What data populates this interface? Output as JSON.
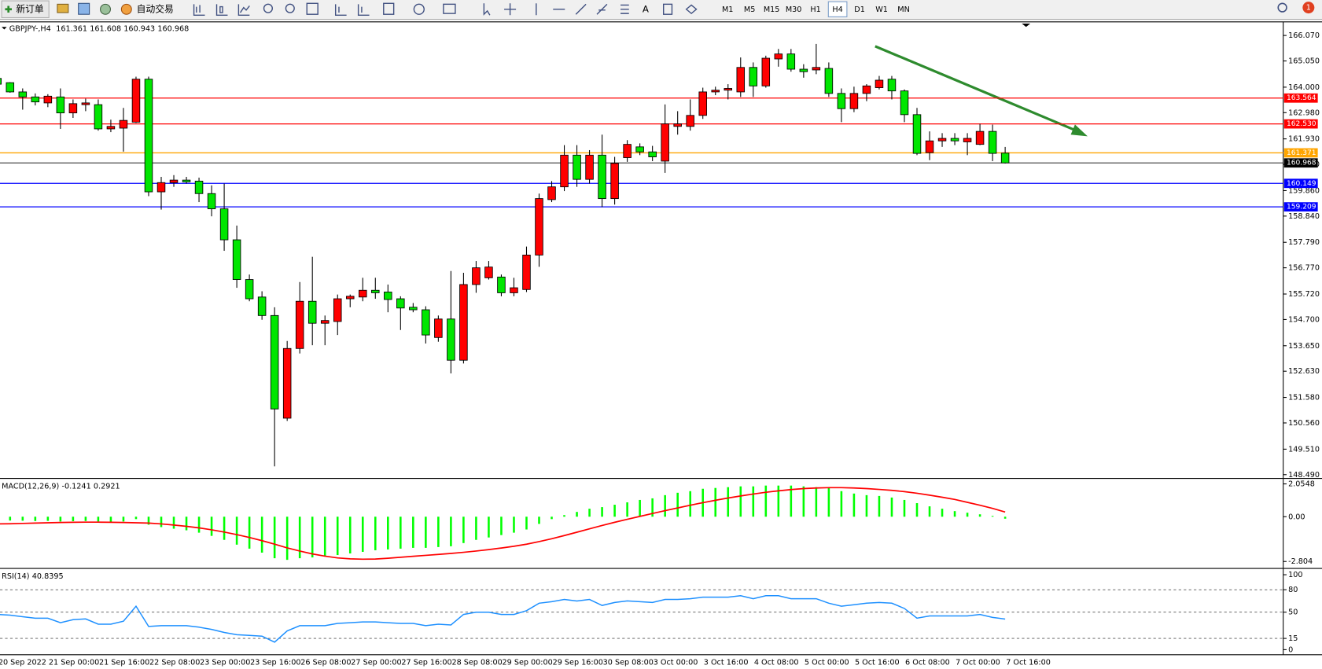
{
  "toolbar": {
    "new_order": "新订单",
    "auto_trading": "自动交易",
    "timeframes": [
      "M1",
      "M5",
      "M15",
      "M30",
      "H1",
      "H4",
      "D1",
      "W1",
      "MN"
    ],
    "active_timeframe": "H4",
    "notifications": 1
  },
  "chart_data": [
    {
      "type": "candlestick",
      "symbol": "GBPJPY-,H4",
      "categories": [
        "20 Sep 2022",
        null,
        null,
        null,
        "21 Sep 00:00",
        null,
        null,
        null,
        "21 Sep 16:00",
        null,
        null,
        null,
        "22 Sep 08:00",
        null,
        null,
        null,
        "23 Sep 00:00",
        null,
        null,
        null,
        "23 Sep 16:00",
        null,
        null,
        null,
        "26 Sep 08:00",
        null,
        null,
        null,
        "27 Sep 00:00",
        null,
        null,
        null,
        "27 Sep 16:00",
        null,
        null,
        null,
        "28 Sep 08:00",
        null,
        null,
        null,
        "29 Sep 00:00",
        null,
        null,
        null,
        "29 Sep 16:00",
        null,
        null,
        null,
        "30 Sep 08:00",
        null,
        null,
        null,
        "3 Oct 00:00",
        null,
        null,
        null,
        "3 Oct 16:00",
        null,
        null,
        null,
        "4 Oct 08:00",
        null,
        null,
        null,
        "5 Oct 00:00",
        null,
        null,
        null,
        "5 Oct 16:00",
        null,
        null,
        null,
        "6 Oct 08:00",
        null,
        null,
        null,
        "7 Oct 00:00",
        null,
        null,
        null,
        "7 Oct 16:00"
      ],
      "open": [
        164.35,
        164.18,
        163.81,
        163.61,
        163.37,
        163.61,
        162.97,
        163.3,
        163.3,
        162.33,
        162.36,
        162.6,
        164.32,
        159.81,
        160.18,
        160.28,
        160.24,
        159.74,
        159.13,
        157.89,
        156.3,
        155.6,
        154.86,
        150.75,
        153.54,
        155.43,
        154.55,
        154.62,
        155.53,
        155.6,
        155.87,
        155.8,
        155.53,
        155.19,
        155.09,
        153.98,
        154.72,
        153.07,
        156.1,
        156.37,
        156.4,
        155.77,
        155.9,
        157.28,
        159.5,
        160.01,
        161.28,
        160.31,
        161.28,
        159.54,
        161.18,
        161.61,
        161.41,
        161.04,
        162.43,
        162.43,
        162.87,
        163.81,
        163.88,
        163.81,
        164.79,
        164.05,
        165.13,
        165.33,
        164.72,
        164.69,
        164.75,
        163.75,
        163.14,
        163.75,
        163.98,
        164.32,
        163.85,
        162.9,
        161.38,
        161.85,
        161.95,
        161.81,
        161.71,
        162.23,
        161.361
      ],
      "high": [
        164.4,
        164.2,
        163.95,
        163.75,
        163.72,
        163.95,
        163.51,
        163.54,
        163.51,
        162.7,
        163.17,
        164.42,
        164.42,
        160.41,
        160.48,
        160.41,
        160.38,
        160.07,
        160.14,
        158.46,
        156.5,
        155.83,
        155.19,
        153.84,
        156.2,
        157.21,
        154.86,
        155.7,
        155.7,
        156.37,
        156.37,
        156.1,
        155.63,
        155.36,
        155.23,
        154.86,
        156.64,
        156.57,
        157.04,
        157.04,
        156.5,
        156.37,
        157.62,
        159.74,
        160.24,
        161.68,
        161.68,
        161.48,
        162.1,
        161.21,
        161.88,
        161.75,
        161.65,
        163.31,
        163.04,
        163.51,
        163.98,
        164.02,
        164.12,
        165.19,
        164.99,
        165.26,
        165.53,
        165.53,
        164.92,
        165.73,
        164.99,
        163.95,
        164.02,
        164.12,
        164.45,
        164.45,
        163.91,
        163.17,
        162.23,
        162.16,
        162.16,
        162.16,
        162.53,
        162.5,
        161.608
      ],
      "low": [
        164.05,
        163.78,
        163.1,
        163.27,
        163.2,
        162.33,
        162.77,
        163.04,
        162.26,
        162.2,
        161.42,
        162.57,
        159.64,
        159.1,
        160.01,
        160.14,
        159.4,
        158.83,
        157.45,
        155.97,
        155.43,
        154.69,
        148.82,
        150.64,
        153.34,
        153.67,
        153.67,
        154.08,
        155.19,
        155.43,
        155.53,
        154.99,
        154.28,
        154.99,
        153.74,
        153.81,
        152.54,
        152.94,
        155.77,
        156.3,
        155.63,
        155.63,
        155.8,
        156.81,
        159.4,
        159.84,
        160.01,
        160.14,
        159.2,
        159.3,
        161.01,
        161.28,
        161.04,
        160.57,
        162.1,
        162.26,
        162.73,
        163.68,
        163.51,
        163.61,
        163.61,
        163.98,
        164.82,
        164.62,
        164.38,
        164.52,
        163.61,
        162.6,
        163.0,
        163.44,
        163.91,
        163.51,
        162.6,
        161.28,
        161.08,
        161.61,
        161.68,
        161.28,
        161.68,
        161.04,
        160.943
      ],
      "close": [
        164.12,
        163.81,
        163.61,
        163.41,
        163.64,
        162.97,
        163.34,
        163.37,
        162.33,
        162.43,
        162.67,
        164.32,
        159.81,
        160.18,
        160.28,
        160.21,
        159.74,
        159.13,
        157.89,
        156.3,
        155.53,
        154.86,
        151.12,
        153.54,
        155.43,
        154.55,
        154.66,
        155.53,
        155.63,
        155.87,
        155.77,
        155.5,
        155.16,
        155.09,
        154.08,
        154.72,
        153.07,
        156.1,
        156.77,
        156.8,
        155.77,
        155.97,
        157.28,
        159.54,
        160.01,
        161.28,
        160.31,
        161.28,
        159.54,
        160.95,
        161.71,
        161.41,
        161.21,
        162.53,
        162.53,
        162.87,
        163.81,
        163.88,
        163.95,
        164.79,
        164.05,
        165.16,
        165.33,
        164.72,
        164.62,
        164.79,
        163.75,
        163.14,
        163.75,
        164.05,
        164.28,
        163.85,
        162.9,
        161.35,
        161.85,
        161.95,
        161.85,
        161.95,
        162.23,
        161.35,
        160.968
      ],
      "up_color": "#ff0000",
      "down_color": "#00e600",
      "ylim": [
        148.39,
        166.58
      ],
      "yticks": [
        {
          "value": 166.07,
          "label": "166.070"
        },
        {
          "value": 165.05,
          "label": "165.050"
        },
        {
          "value": 164.0,
          "label": "164.000"
        },
        {
          "value": 162.98,
          "label": "162.980"
        },
        {
          "value": 161.93,
          "label": "161.930"
        },
        {
          "value": 160.91,
          "label": "160.910"
        },
        {
          "value": 159.86,
          "label": "159.860"
        },
        {
          "value": 158.84,
          "label": "158.840"
        },
        {
          "value": 157.79,
          "label": "157.790"
        },
        {
          "value": 156.77,
          "label": "156.770"
        },
        {
          "value": 155.72,
          "label": "155.720"
        },
        {
          "value": 154.7,
          "label": "154.700"
        },
        {
          "value": 153.65,
          "label": "153.650"
        },
        {
          "value": 152.63,
          "label": "152.630"
        },
        {
          "value": 151.58,
          "label": "151.580"
        },
        {
          "value": 150.56,
          "label": "150.560"
        },
        {
          "value": 149.51,
          "label": "149.510"
        },
        {
          "value": 148.49,
          "label": "148.490"
        }
      ],
      "hlines": [
        {
          "value": 163.564,
          "color": "#ff0000"
        },
        {
          "value": 162.53,
          "label": "162.530",
          "color": "#ff0000"
        },
        {
          "value": 161.371,
          "color": "#ffa500"
        },
        {
          "value": 160.968,
          "color": "#000000"
        },
        {
          "value": 160.149,
          "color": "#0000ff"
        },
        {
          "value": 159.209,
          "color": "#0000ff"
        }
      ]
    },
    {
      "type": "macd",
      "title": "MACD(12,26,9)",
      "values": [
        -0.25,
        -0.24,
        -0.25,
        -0.27,
        -0.26,
        -0.3,
        -0.28,
        -0.27,
        -0.3,
        -0.32,
        -0.3,
        -0.15,
        -0.5,
        -0.65,
        -0.75,
        -0.85,
        -1.0,
        -1.2,
        -1.45,
        -1.75,
        -2.0,
        -2.25,
        -2.6,
        -2.7,
        -2.6,
        -2.55,
        -2.5,
        -2.4,
        -2.3,
        -2.2,
        -2.1,
        -2.05,
        -2.0,
        -1.95,
        -1.95,
        -1.9,
        -1.85,
        -1.65,
        -1.45,
        -1.3,
        -1.15,
        -1.0,
        -0.8,
        -0.45,
        -0.15,
        0.1,
        0.3,
        0.5,
        0.6,
        0.75,
        0.9,
        1.05,
        1.15,
        1.35,
        1.5,
        1.6,
        1.75,
        1.8,
        1.85,
        1.9,
        1.9,
        1.95,
        1.95,
        1.95,
        1.9,
        1.85,
        1.8,
        1.6,
        1.45,
        1.35,
        1.3,
        1.2,
        1.05,
        0.85,
        0.65,
        0.5,
        0.35,
        0.25,
        0.15,
        0.05,
        -0.1241
      ],
      "color": "#00ff00",
      "signal_values": [
        -0.45,
        -0.44,
        -0.42,
        -0.4,
        -0.38,
        -0.36,
        -0.35,
        -0.34,
        -0.34,
        -0.35,
        -0.36,
        -0.38,
        -0.4,
        -0.45,
        -0.52,
        -0.6,
        -0.7,
        -0.82,
        -0.96,
        -1.12,
        -1.3,
        -1.5,
        -1.72,
        -1.95,
        -2.15,
        -2.33,
        -2.47,
        -2.58,
        -2.64,
        -2.66,
        -2.65,
        -2.6,
        -2.54,
        -2.48,
        -2.42,
        -2.36,
        -2.3,
        -2.23,
        -2.15,
        -2.06,
        -1.96,
        -1.85,
        -1.72,
        -1.56,
        -1.38,
        -1.18,
        -0.97,
        -0.76,
        -0.55,
        -0.35,
        -0.16,
        0.02,
        0.2,
        0.38,
        0.55,
        0.72,
        0.88,
        1.03,
        1.17,
        1.3,
        1.42,
        1.53,
        1.62,
        1.7,
        1.76,
        1.8,
        1.82,
        1.82,
        1.8,
        1.76,
        1.71,
        1.65,
        1.57,
        1.47,
        1.35,
        1.22,
        1.08,
        0.9,
        0.72,
        0.52,
        0.2921
      ],
      "signal_color": "#ff0000",
      "ylim": [
        -3.16,
        2.32
      ],
      "yticks": [
        2.0548,
        {
          "value": 0,
          "label": "0.00"
        },
        -2.804
      ]
    },
    {
      "type": "line",
      "title": "RSI(14)",
      "values": [
        47,
        46,
        44,
        42,
        42,
        36,
        40,
        41,
        34,
        34,
        38,
        58,
        31,
        32,
        32,
        32,
        30,
        27,
        23,
        20,
        19,
        18,
        10,
        25,
        32,
        32,
        32,
        35,
        36,
        37,
        37,
        36,
        35,
        35,
        32,
        34,
        33,
        47,
        50,
        50,
        47,
        47,
        52,
        62,
        64,
        67,
        65,
        67,
        59,
        63,
        65,
        64,
        63,
        67,
        67,
        68,
        70,
        70,
        70,
        72,
        68,
        72,
        72,
        68,
        68,
        68,
        62,
        58,
        60,
        62,
        63,
        62,
        55,
        42,
        45,
        45,
        45,
        45,
        47,
        43,
        40.8395
      ],
      "color": "#1e90ff",
      "ylim": [
        -5.6,
        106.7
      ],
      "yticks": [
        0,
        15,
        50,
        80,
        100
      ],
      "levels": [
        80,
        50,
        15
      ]
    }
  ]
}
